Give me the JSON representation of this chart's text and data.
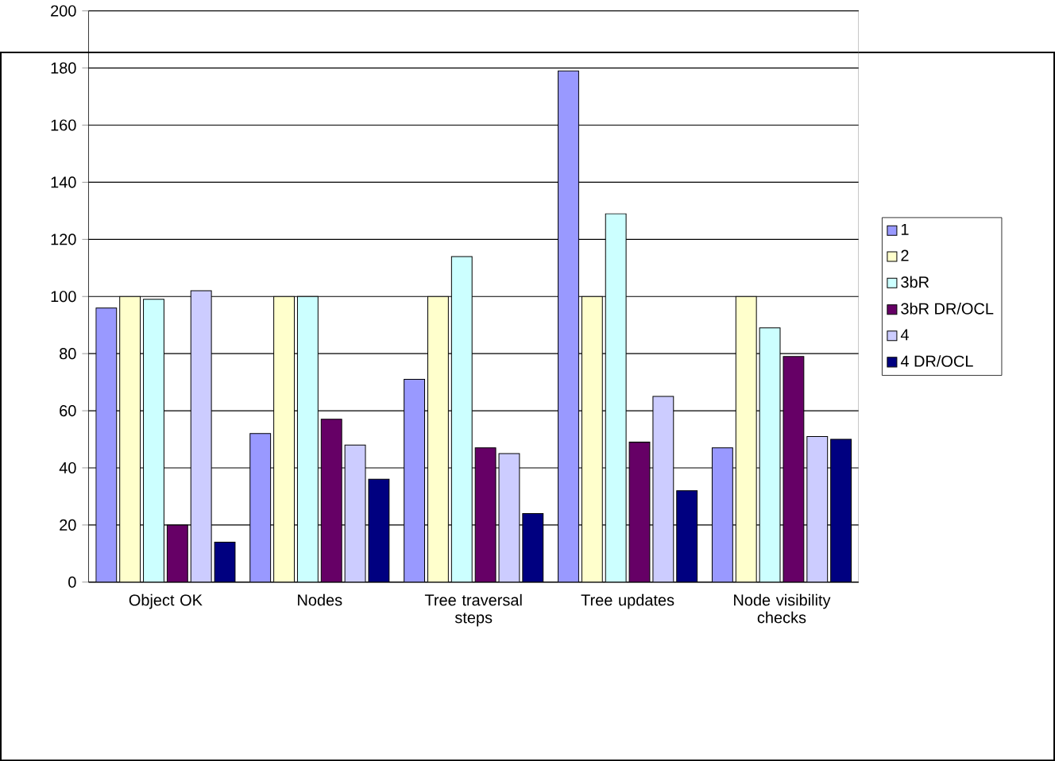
{
  "chart_data": {
    "type": "bar",
    "categories": [
      "Object OK",
      "Nodes",
      "Tree traversal steps",
      "Tree updates",
      "Node visibility checks"
    ],
    "series": [
      {
        "name": "1",
        "color": "#9999ff",
        "values": [
          96,
          52,
          71,
          179,
          47
        ]
      },
      {
        "name": "2",
        "color": "#ffffcc",
        "values": [
          100,
          100,
          100,
          100,
          100
        ]
      },
      {
        "name": "3bR",
        "color": "#ccffff",
        "values": [
          99,
          100,
          114,
          129,
          89
        ]
      },
      {
        "name": "3bR DR/OCL",
        "color": "#660066",
        "values": [
          20,
          57,
          47,
          49,
          79
        ]
      },
      {
        "name": "4",
        "color": "#ccccff",
        "values": [
          102,
          48,
          45,
          65,
          51
        ]
      },
      {
        "name": "4 DR/OCL",
        "color": "#000080",
        "values": [
          14,
          36,
          24,
          32,
          50
        ]
      }
    ],
    "ylim": [
      0,
      200
    ],
    "yticks": [
      0,
      20,
      40,
      60,
      80,
      100,
      120,
      140,
      160,
      180,
      200
    ],
    "grid": "y",
    "legend": "right"
  }
}
